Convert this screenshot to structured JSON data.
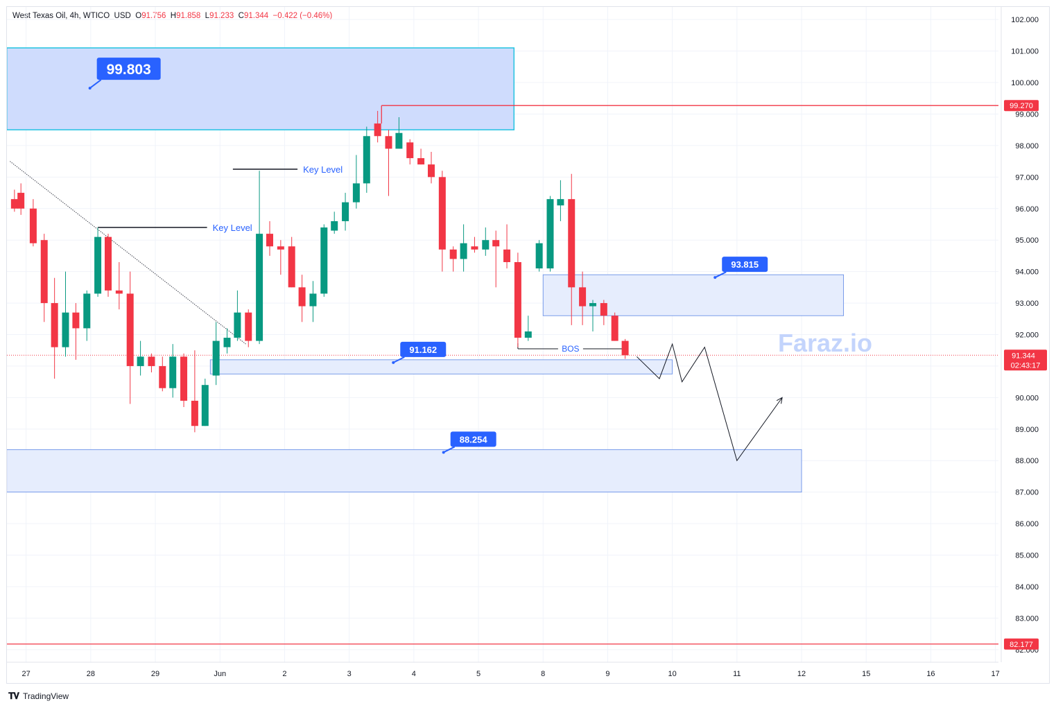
{
  "header": {
    "symbol": "West Texas Oil, 4h, WTICO_USD",
    "o_label": "O",
    "o_value": "91.756",
    "h_label": "H",
    "h_value": "91.858",
    "l_label": "L",
    "l_value": "91.233",
    "c_label": "C",
    "c_value": "91.344",
    "change": "−0.422 (−0.46%)"
  },
  "footer": {
    "brand": "TradingView"
  },
  "watermark": "Faraz.io",
  "colors": {
    "up": "#089981",
    "down": "#f23645",
    "zone_fill": "#cfdcfd",
    "zone_border": "#2962ff",
    "label_bg": "#2962ff",
    "red_line": "#f23645"
  },
  "chart_data": {
    "type": "candlestick",
    "title": "West Texas Oil, 4h, WTICO_USD",
    "ylim": [
      81.6,
      102.4
    ],
    "y_ticks": [
      "102.000",
      "101.000",
      "100.000",
      "99.000",
      "98.000",
      "97.000",
      "96.000",
      "95.000",
      "94.000",
      "93.000",
      "92.000",
      "91.000",
      "90.000",
      "89.000",
      "88.000",
      "87.000",
      "86.000",
      "85.000",
      "84.000",
      "83.000",
      "82.000"
    ],
    "x_ticks": [
      {
        "label": "27",
        "x": 0.2
      },
      {
        "label": "28",
        "x": 1.2
      },
      {
        "label": "29",
        "x": 2.2
      },
      {
        "label": "Jun",
        "x": 3.2
      },
      {
        "label": "2",
        "x": 4.2
      },
      {
        "label": "3",
        "x": 5.2
      },
      {
        "label": "4",
        "x": 6.2
      },
      {
        "label": "5",
        "x": 7.2
      },
      {
        "label": "8",
        "x": 8.2
      },
      {
        "label": "9",
        "x": 9.2
      },
      {
        "label": "10",
        "x": 10.2
      },
      {
        "label": "11",
        "x": 11.2
      },
      {
        "label": "12",
        "x": 12.2
      },
      {
        "label": "15",
        "x": 13.2
      },
      {
        "label": "16",
        "x": 14.2
      },
      {
        "label": "17",
        "x": 15.2
      }
    ],
    "candles": [
      {
        "x": 0.02,
        "o": 96.3,
        "h": 96.6,
        "l": 95.9,
        "c": 96.0
      },
      {
        "x": 0.12,
        "o": 96.5,
        "h": 96.8,
        "l": 95.8,
        "c": 96.0
      },
      {
        "x": 0.31,
        "o": 96.0,
        "h": 96.3,
        "l": 94.8,
        "c": 94.9
      },
      {
        "x": 0.48,
        "o": 95.0,
        "h": 95.2,
        "l": 92.4,
        "c": 93.0
      },
      {
        "x": 0.64,
        "o": 93.0,
        "h": 93.8,
        "l": 90.6,
        "c": 91.6
      },
      {
        "x": 0.81,
        "o": 91.6,
        "h": 94.0,
        "l": 91.3,
        "c": 92.7
      },
      {
        "x": 0.97,
        "o": 92.7,
        "h": 93.0,
        "l": 91.2,
        "c": 92.2
      },
      {
        "x": 1.14,
        "o": 92.2,
        "h": 93.4,
        "l": 91.8,
        "c": 93.3
      },
      {
        "x": 1.31,
        "o": 93.3,
        "h": 95.4,
        "l": 93.2,
        "c": 95.1
      },
      {
        "x": 1.47,
        "o": 95.1,
        "h": 95.2,
        "l": 93.2,
        "c": 93.4
      },
      {
        "x": 1.64,
        "o": 93.4,
        "h": 94.3,
        "l": 92.8,
        "c": 93.3
      },
      {
        "x": 1.81,
        "o": 93.3,
        "h": 94.0,
        "l": 89.8,
        "c": 91.0
      },
      {
        "x": 1.97,
        "o": 91.0,
        "h": 91.8,
        "l": 90.7,
        "c": 91.3
      },
      {
        "x": 2.14,
        "o": 91.3,
        "h": 91.4,
        "l": 90.8,
        "c": 91.0
      },
      {
        "x": 2.31,
        "o": 91.0,
        "h": 91.3,
        "l": 90.2,
        "c": 90.3
      },
      {
        "x": 2.47,
        "o": 90.3,
        "h": 91.7,
        "l": 90.0,
        "c": 91.3
      },
      {
        "x": 2.64,
        "o": 91.3,
        "h": 91.4,
        "l": 89.7,
        "c": 89.9
      },
      {
        "x": 2.81,
        "o": 89.9,
        "h": 91.5,
        "l": 88.9,
        "c": 89.1
      },
      {
        "x": 2.97,
        "o": 89.1,
        "h": 90.6,
        "l": 89.1,
        "c": 90.4
      },
      {
        "x": 3.14,
        "o": 90.7,
        "h": 92.4,
        "l": 90.4,
        "c": 91.8
      },
      {
        "x": 3.31,
        "o": 91.6,
        "h": 92.2,
        "l": 91.4,
        "c": 91.9
      },
      {
        "x": 3.47,
        "o": 91.9,
        "h": 93.4,
        "l": 91.8,
        "c": 92.7
      },
      {
        "x": 3.64,
        "o": 92.7,
        "h": 92.8,
        "l": 91.6,
        "c": 91.8
      },
      {
        "x": 3.81,
        "o": 91.8,
        "h": 97.2,
        "l": 91.7,
        "c": 95.2
      },
      {
        "x": 3.97,
        "o": 95.2,
        "h": 95.6,
        "l": 94.5,
        "c": 94.8
      },
      {
        "x": 4.14,
        "o": 94.8,
        "h": 95.0,
        "l": 93.9,
        "c": 94.7
      },
      {
        "x": 4.31,
        "o": 94.8,
        "h": 95.1,
        "l": 93.5,
        "c": 93.5
      },
      {
        "x": 4.47,
        "o": 93.5,
        "h": 93.9,
        "l": 92.4,
        "c": 92.9
      },
      {
        "x": 4.64,
        "o": 92.9,
        "h": 93.7,
        "l": 92.4,
        "c": 93.3
      },
      {
        "x": 4.81,
        "o": 93.3,
        "h": 95.5,
        "l": 93.2,
        "c": 95.4
      },
      {
        "x": 4.97,
        "o": 95.3,
        "h": 95.9,
        "l": 95.2,
        "c": 95.6
      },
      {
        "x": 5.14,
        "o": 95.6,
        "h": 96.5,
        "l": 95.3,
        "c": 96.2
      },
      {
        "x": 5.31,
        "o": 96.2,
        "h": 97.7,
        "l": 96.0,
        "c": 96.8
      },
      {
        "x": 5.47,
        "o": 96.8,
        "h": 98.6,
        "l": 96.5,
        "c": 98.3
      },
      {
        "x": 5.64,
        "o": 98.7,
        "h": 99.1,
        "l": 98.1,
        "c": 98.3
      },
      {
        "x": 5.81,
        "o": 98.3,
        "h": 98.5,
        "l": 96.4,
        "c": 97.9
      },
      {
        "x": 5.97,
        "o": 97.9,
        "h": 98.9,
        "l": 97.9,
        "c": 98.4
      },
      {
        "x": 6.14,
        "o": 98.1,
        "h": 98.2,
        "l": 97.4,
        "c": 97.6
      },
      {
        "x": 6.31,
        "o": 97.6,
        "h": 97.9,
        "l": 97.4,
        "c": 97.4
      },
      {
        "x": 6.47,
        "o": 97.4,
        "h": 97.8,
        "l": 96.8,
        "c": 97.0
      },
      {
        "x": 6.64,
        "o": 97.0,
        "h": 97.2,
        "l": 94.0,
        "c": 94.7
      },
      {
        "x": 6.81,
        "o": 94.7,
        "h": 94.8,
        "l": 94.0,
        "c": 94.4
      },
      {
        "x": 6.97,
        "o": 94.4,
        "h": 95.5,
        "l": 94.0,
        "c": 94.9
      },
      {
        "x": 7.14,
        "o": 94.8,
        "h": 95.1,
        "l": 94.6,
        "c": 94.7
      },
      {
        "x": 7.31,
        "o": 94.7,
        "h": 95.4,
        "l": 94.5,
        "c": 95.0
      },
      {
        "x": 7.47,
        "o": 95.0,
        "h": 95.3,
        "l": 93.5,
        "c": 94.8
      },
      {
        "x": 7.64,
        "o": 94.7,
        "h": 95.5,
        "l": 94.1,
        "c": 94.3
      },
      {
        "x": 7.81,
        "o": 94.3,
        "h": 94.6,
        "l": 91.6,
        "c": 91.9
      },
      {
        "x": 7.97,
        "o": 91.9,
        "h": 92.6,
        "l": 91.8,
        "c": 92.1
      },
      {
        "x": 8.14,
        "o": 94.1,
        "h": 95.0,
        "l": 94.0,
        "c": 94.9
      },
      {
        "x": 8.31,
        "o": 94.1,
        "h": 96.4,
        "l": 94.0,
        "c": 96.3
      },
      {
        "x": 8.47,
        "o": 96.1,
        "h": 96.9,
        "l": 95.6,
        "c": 96.3
      },
      {
        "x": 8.64,
        "o": 96.3,
        "h": 97.1,
        "l": 92.3,
        "c": 93.5
      },
      {
        "x": 8.81,
        "o": 93.5,
        "h": 94.0,
        "l": 92.3,
        "c": 92.9
      },
      {
        "x": 8.97,
        "o": 92.9,
        "h": 93.1,
        "l": 92.1,
        "c": 93.0
      },
      {
        "x": 9.14,
        "o": 93.0,
        "h": 93.1,
        "l": 92.3,
        "c": 92.6
      },
      {
        "x": 9.31,
        "o": 92.6,
        "h": 92.7,
        "l": 91.8,
        "c": 91.8
      },
      {
        "x": 9.47,
        "o": 91.8,
        "h": 91.86,
        "l": 91.23,
        "c": 91.344
      }
    ],
    "zones": [
      {
        "x0": -0.1,
        "x1": 7.75,
        "top": 101.1,
        "bottom": 98.5,
        "label": "99.803",
        "style": "strong"
      },
      {
        "x0": 8.2,
        "x1": 12.85,
        "top": 93.9,
        "bottom": 92.6,
        "label": "93.815",
        "style": "light"
      },
      {
        "x0": 3.05,
        "x1": 10.2,
        "top": 91.2,
        "bottom": 90.75,
        "label": "91.162",
        "style": "light"
      },
      {
        "x0": -0.1,
        "x1": 12.2,
        "top": 88.35,
        "bottom": 87.0,
        "label": "88.254",
        "style": "light"
      }
    ],
    "horizontal_lines": [
      {
        "price": 99.27,
        "x0": 5.7,
        "label": "99.270",
        "color": "#f23645"
      },
      {
        "price": 82.177,
        "x0": -0.1,
        "label": "82.177",
        "color": "#f23645"
      }
    ],
    "current_price": {
      "value": "91.344",
      "countdown": "02:43:17"
    },
    "key_levels": [
      {
        "price": 97.25,
        "x0": 3.4,
        "x1": 4.4,
        "label": "Key Level"
      },
      {
        "price": 95.4,
        "x0": 1.31,
        "x1": 3.0,
        "label": "Key Level"
      }
    ],
    "bos": {
      "price": 91.55,
      "x0": 7.81,
      "x1": 9.45,
      "label": "BOS"
    },
    "trendline": [
      [
        -0.05,
        97.5
      ],
      [
        3.6,
        91.7
      ]
    ],
    "projection": [
      [
        9.65,
        91.3
      ],
      [
        10.0,
        90.6
      ],
      [
        10.2,
        91.7
      ],
      [
        10.35,
        90.5
      ],
      [
        10.7,
        91.6
      ],
      [
        11.2,
        88.0
      ],
      [
        11.9,
        90.0
      ]
    ]
  }
}
